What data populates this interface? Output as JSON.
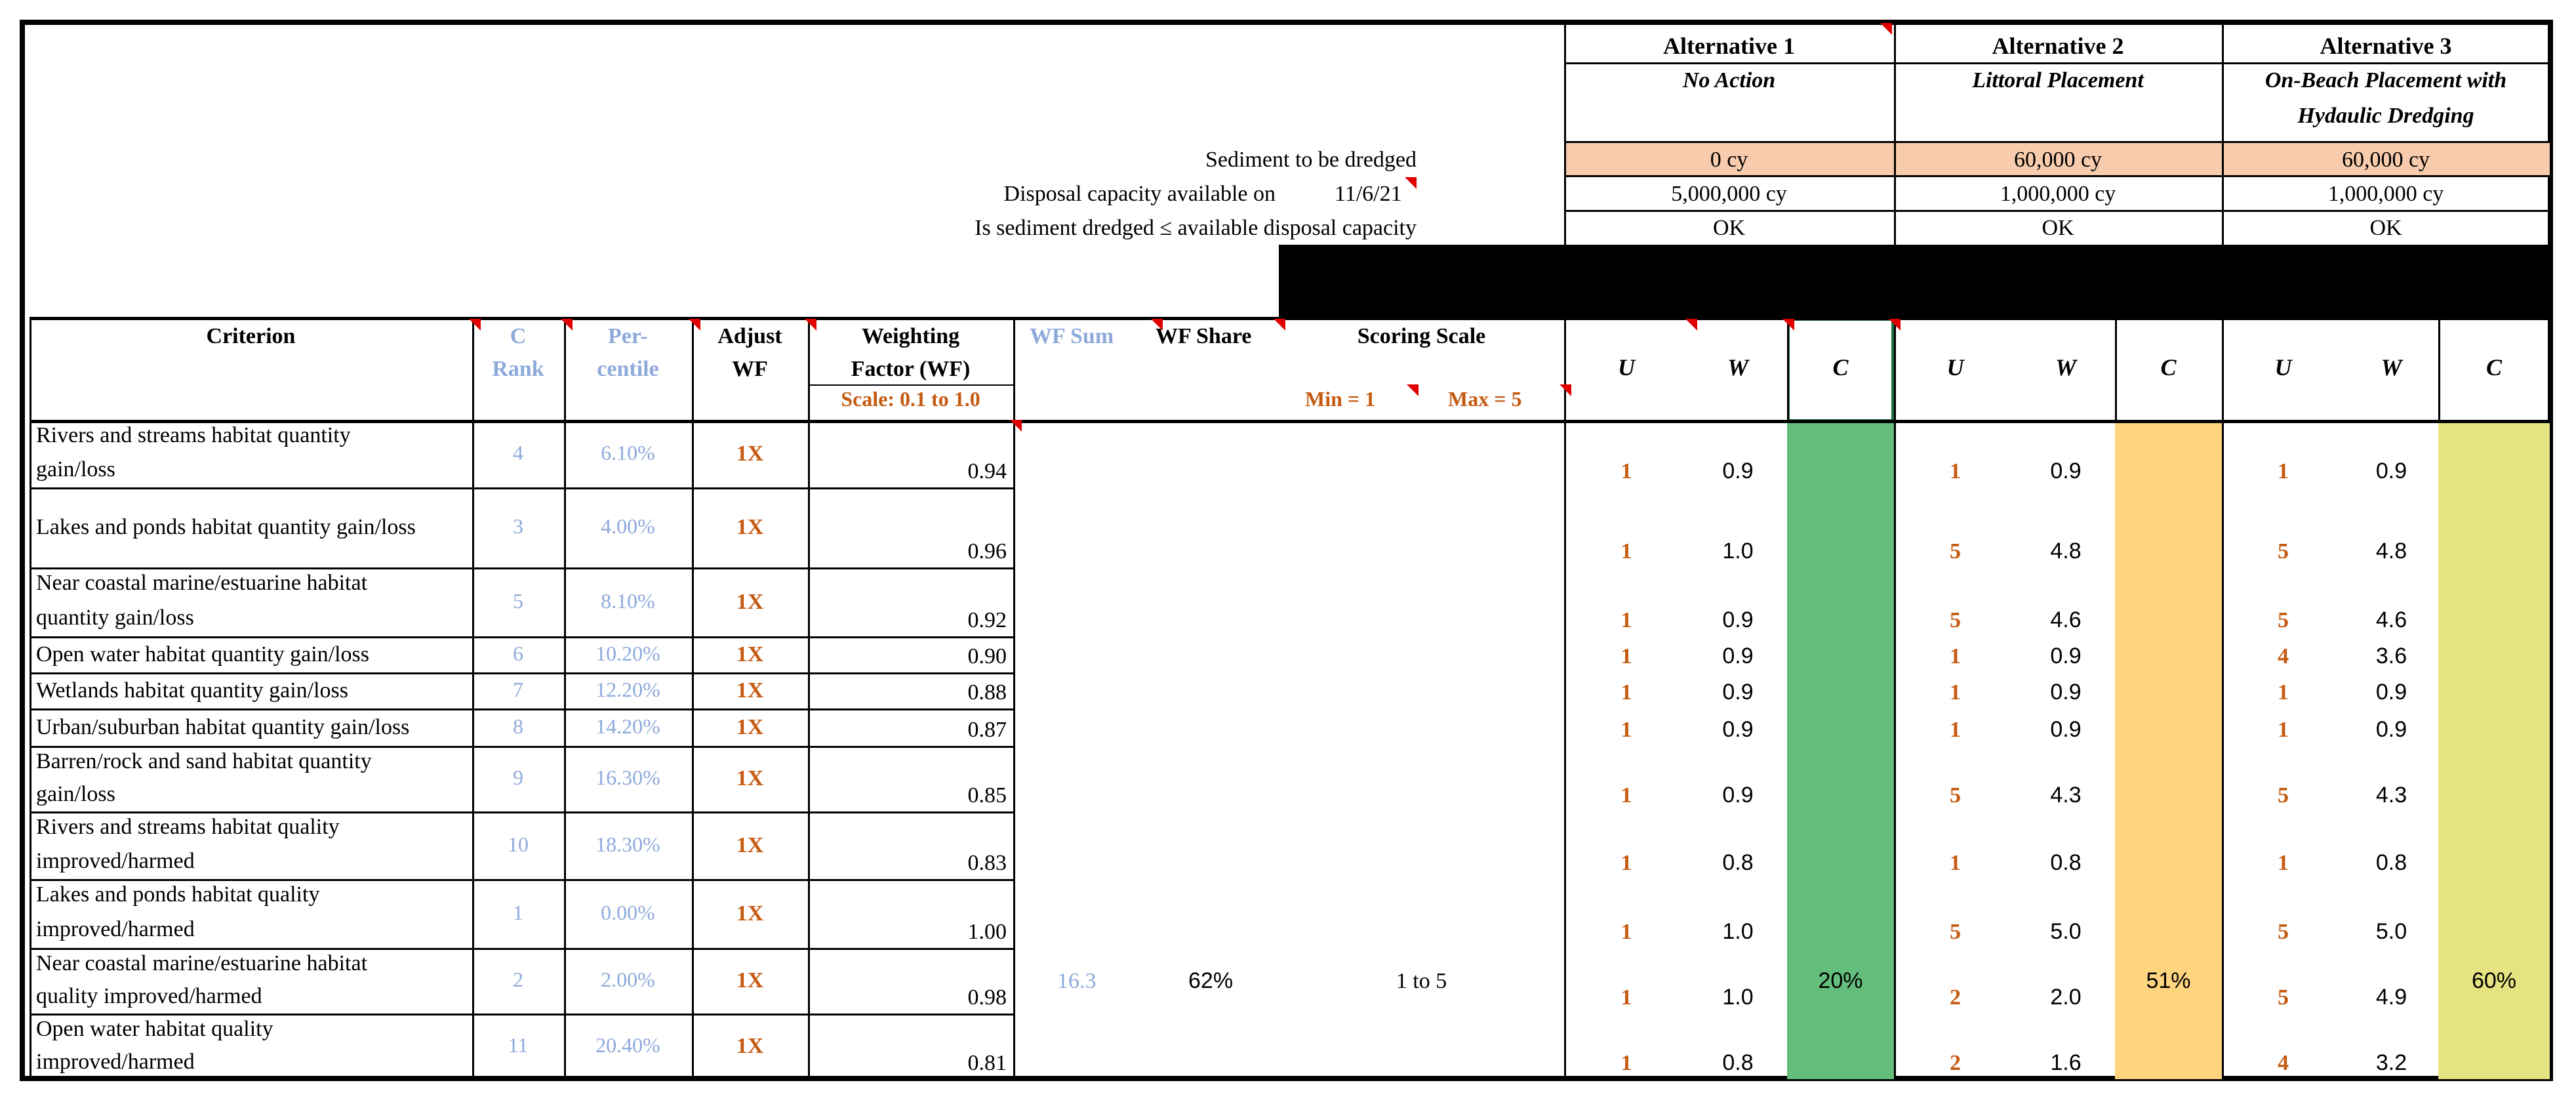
{
  "alternatives": [
    {
      "title": "Alternative 1",
      "subtitle": "No Action",
      "sediment": "0 cy",
      "capacity": "5,000,000 cy",
      "status": "OK",
      "c_total": "20%",
      "c_color": "#63be7b"
    },
    {
      "title": "Alternative 2",
      "subtitle": "Littoral Placement",
      "sediment": "60,000 cy",
      "capacity": "1,000,000 cy",
      "status": "OK",
      "c_total": "51%",
      "c_color": "#fed47f"
    },
    {
      "title": "Alternative 3",
      "subtitle_line1": "On-Beach Placement with",
      "subtitle_line2": "Hydaulic Dredging",
      "sediment": "60,000 cy",
      "capacity": "1,000,000 cy",
      "status": "OK",
      "c_total": "60%",
      "c_color": "#e6e382"
    }
  ],
  "info": {
    "sediment_label": "Sediment to be dredged",
    "disposal_label": "Disposal capacity available on",
    "disposal_date": "11/6/21",
    "compare_label": "Is sediment dredged ≤ available disposal capacity"
  },
  "headers": {
    "criterion": "Criterion",
    "c_rank_1": "C",
    "c_rank_2": "Rank",
    "percentile_1": "Per-",
    "percentile_2": "centile",
    "adjust_1": "Adjust",
    "adjust_2": "WF",
    "weighting_1": "Weighting",
    "weighting_2": "Factor (WF)",
    "weighting_scale": "Scale: 0.1 to 1.0",
    "wf_sum": "WF Sum",
    "wf_share": "WF Share",
    "scoring_scale": "Scoring Scale",
    "scoring_min": "Min = 1",
    "scoring_max": "Max = 5",
    "u": "U",
    "w": "W",
    "c": "C"
  },
  "summary": {
    "wf_sum": "16.3",
    "wf_share": "62%",
    "scoring_range": "1 to 5"
  },
  "rows": [
    {
      "line1": "Rivers and streams habitat quantity",
      "line2": "gain/loss",
      "rank": "4",
      "pct": "6.10%",
      "adj": "1X",
      "wf": "0.94",
      "u1": "1",
      "w1": "0.9",
      "u2": "1",
      "w2": "0.9",
      "u3": "1",
      "w3": "0.9"
    },
    {
      "line1": "Lakes and ponds habitat quantity gain/loss",
      "line2": "",
      "rank": "3",
      "pct": "4.00%",
      "adj": "1X",
      "wf": "0.96",
      "u1": "1",
      "w1": "1.0",
      "u2": "5",
      "w2": "4.8",
      "u3": "5",
      "w3": "4.8"
    },
    {
      "line1": "Near coastal marine/estuarine habitat",
      "line2": "quantity gain/loss",
      "rank": "5",
      "pct": "8.10%",
      "adj": "1X",
      "wf": "0.92",
      "u1": "1",
      "w1": "0.9",
      "u2": "5",
      "w2": "4.6",
      "u3": "5",
      "w3": "4.6"
    },
    {
      "line1": "Open water habitat quantity gain/loss",
      "line2": "",
      "rank": "6",
      "pct": "10.20%",
      "adj": "1X",
      "wf": "0.90",
      "u1": "1",
      "w1": "0.9",
      "u2": "1",
      "w2": "0.9",
      "u3": "4",
      "w3": "3.6"
    },
    {
      "line1": "Wetlands habitat quantity gain/loss",
      "line2": "",
      "rank": "7",
      "pct": "12.20%",
      "adj": "1X",
      "wf": "0.88",
      "u1": "1",
      "w1": "0.9",
      "u2": "1",
      "w2": "0.9",
      "u3": "1",
      "w3": "0.9"
    },
    {
      "line1": "Urban/suburban habitat quantity gain/loss",
      "line2": "",
      "rank": "8",
      "pct": "14.20%",
      "adj": "1X",
      "wf": "0.87",
      "u1": "1",
      "w1": "0.9",
      "u2": "1",
      "w2": "0.9",
      "u3": "1",
      "w3": "0.9"
    },
    {
      "line1": "Barren/rock and sand habitat quantity",
      "line2": "gain/loss",
      "rank": "9",
      "pct": "16.30%",
      "adj": "1X",
      "wf": "0.85",
      "u1": "1",
      "w1": "0.9",
      "u2": "5",
      "w2": "4.3",
      "u3": "5",
      "w3": "4.3"
    },
    {
      "line1": "Rivers and streams habitat quality",
      "line2": "improved/harmed",
      "rank": "10",
      "pct": "18.30%",
      "adj": "1X",
      "wf": "0.83",
      "u1": "1",
      "w1": "0.8",
      "u2": "1",
      "w2": "0.8",
      "u3": "1",
      "w3": "0.8"
    },
    {
      "line1": "Lakes and ponds habitat quality",
      "line2": "improved/harmed",
      "rank": "1",
      "pct": "0.00%",
      "adj": "1X",
      "wf": "1.00",
      "u1": "1",
      "w1": "1.0",
      "u2": "5",
      "w2": "5.0",
      "u3": "5",
      "w3": "5.0"
    },
    {
      "line1": "Near coastal marine/estuarine habitat",
      "line2": "quality improved/harmed",
      "rank": "2",
      "pct": "2.00%",
      "adj": "1X",
      "wf": "0.98",
      "u1": "1",
      "w1": "1.0",
      "u2": "2",
      "w2": "2.0",
      "u3": "5",
      "w3": "4.9"
    },
    {
      "line1": "Open water habitat quality",
      "line2": "improved/harmed",
      "rank": "11",
      "pct": "20.40%",
      "adj": "1X",
      "wf": "0.81",
      "u1": "1",
      "w1": "0.8",
      "u2": "2",
      "w2": "1.6",
      "u3": "4",
      "w3": "3.2"
    }
  ]
}
